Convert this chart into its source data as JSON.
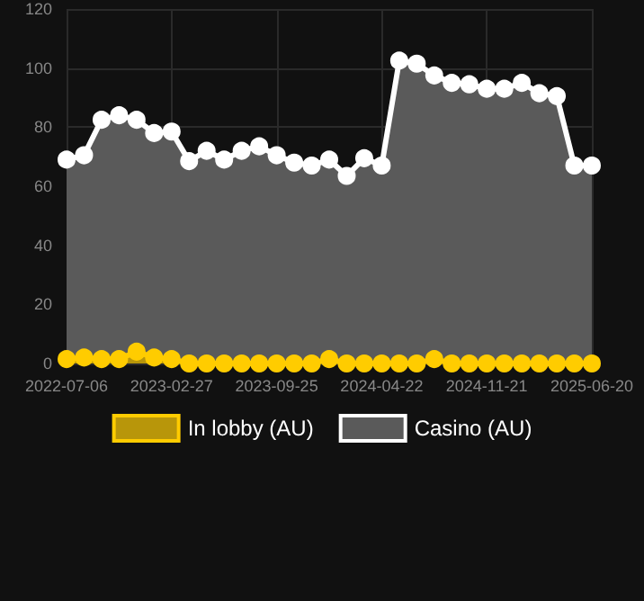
{
  "chart_data": {
    "type": "area",
    "categories": [
      "2022-07-06",
      null,
      null,
      null,
      null,
      null,
      "2023-02-27",
      null,
      null,
      null,
      null,
      null,
      "2023-09-25",
      null,
      null,
      null,
      null,
      null,
      "2024-04-22",
      null,
      null,
      null,
      null,
      null,
      "2024-11-21",
      null,
      null,
      null,
      null,
      null,
      "2025-06-20"
    ],
    "series": [
      {
        "name": "In lobby (AU)",
        "color": "#ffcc00",
        "values": [
          1.5,
          2,
          1.5,
          1.5,
          4,
          2,
          1.5,
          0,
          0,
          0,
          0,
          0,
          0,
          0,
          0,
          1.5,
          0,
          0,
          0,
          0,
          0,
          1.5,
          0,
          0,
          0,
          0,
          0,
          0,
          0,
          0,
          0
        ]
      },
      {
        "name": "Casino (AU)",
        "color": "#ffffff",
        "values": [
          69,
          70.5,
          82.5,
          84,
          82.5,
          78,
          78.5,
          68.5,
          72,
          69,
          72,
          73.5,
          70.5,
          68,
          67,
          69,
          63.5,
          69.5,
          67,
          102.5,
          101.5,
          97.5,
          95,
          94.5,
          93,
          93,
          95,
          91.5,
          90.5,
          67,
          67
        ]
      }
    ],
    "ylim": [
      0,
      120
    ],
    "yticks": [
      0,
      20,
      40,
      60,
      80,
      100,
      120
    ],
    "grid": true,
    "legend": "bottom",
    "marker": "circle",
    "line_style": "solid"
  }
}
